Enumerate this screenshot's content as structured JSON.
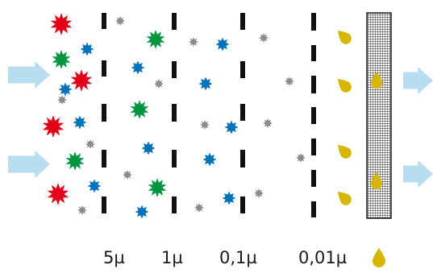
{
  "filter_stages": [
    {
      "label": "5µ"
    },
    {
      "label": "1µ"
    },
    {
      "label": "0,1µ"
    },
    {
      "label": "0,01µ"
    }
  ],
  "legend": {
    "drop_icon": "water-drop-icon"
  },
  "colors": {
    "red": "#e2001a",
    "green": "#00963f",
    "blue": "#0072bc",
    "gray": "#8c8c8c",
    "drop": "#d6b600",
    "arrow": "#b8dcf0",
    "barrier": "#111111"
  }
}
